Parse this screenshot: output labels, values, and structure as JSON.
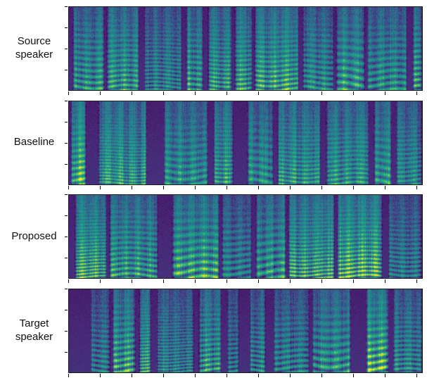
{
  "figure": {
    "background": "#ffffff",
    "rows": [
      {
        "label": "Source\nspeaker"
      },
      {
        "label": "Baseline"
      },
      {
        "label": "Proposed"
      },
      {
        "label": "Target\nspeaker"
      }
    ]
  },
  "chart_data": {
    "type": "heatmap",
    "subtype": "audio-spectrogram-comparison",
    "colormap": "viridis",
    "title": "",
    "xlabel": "",
    "ylabel": "",
    "x_tick_labels": [],
    "y_tick_labels": [],
    "panels": [
      {
        "row": 1,
        "label": "Source speaker",
        "content": "speech spectrogram with bright harmonic bands, dark silence gaps, one bright yellow burst near middle"
      },
      {
        "row": 2,
        "label": "Baseline",
        "content": "converted speech spectrogram, smoother/blurrier harmonics"
      },
      {
        "row": 3,
        "label": "Proposed",
        "content": "converted speech spectrogram, sharper harmonic striations"
      },
      {
        "row": 4,
        "label": "Target speaker",
        "content": "reference speech spectrogram, leading silence region at left, clear wavy harmonics"
      }
    ],
    "colors": {
      "low": "#440154",
      "mid": "#21918c",
      "high": "#fde725",
      "axis_border": "#000000"
    }
  }
}
